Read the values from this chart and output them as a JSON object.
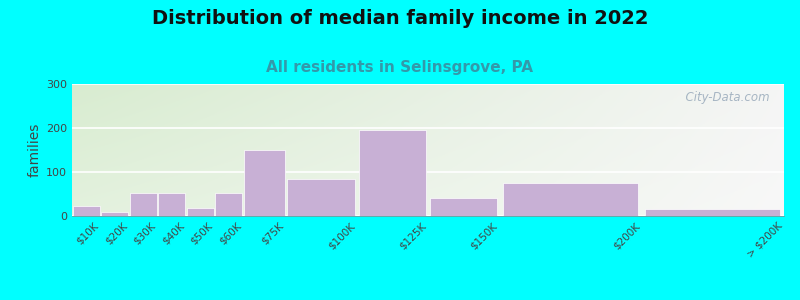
{
  "title": "Distribution of median family income in 2022",
  "subtitle": "All residents in Selinsgrove, PA",
  "ylabel": "families",
  "background_color": "#00FFFF",
  "plot_bg_left_color": "#d8ecd0",
  "plot_bg_right_color": "#f5f5f5",
  "bar_color": "#c8b0d5",
  "bar_edge_color": "#c8b0d5",
  "bin_edges": [
    0,
    10,
    20,
    30,
    40,
    50,
    60,
    75,
    100,
    125,
    150,
    200,
    250
  ],
  "bin_labels": [
    "$10K",
    "$20K",
    "$30K",
    "$40K",
    "$50K",
    "$60K",
    "$75K",
    "$100K",
    "$125K",
    "$150K",
    "$200K",
    "> $200K"
  ],
  "values": [
    22,
    8,
    52,
    52,
    18,
    52,
    150,
    83,
    195,
    42,
    75,
    15
  ],
  "ylim": [
    0,
    300
  ],
  "yticks": [
    0,
    100,
    200,
    300
  ],
  "title_fontsize": 14,
  "subtitle_fontsize": 11,
  "subtitle_color": "#3399aa",
  "ylabel_fontsize": 10,
  "watermark": "  City-Data.com"
}
